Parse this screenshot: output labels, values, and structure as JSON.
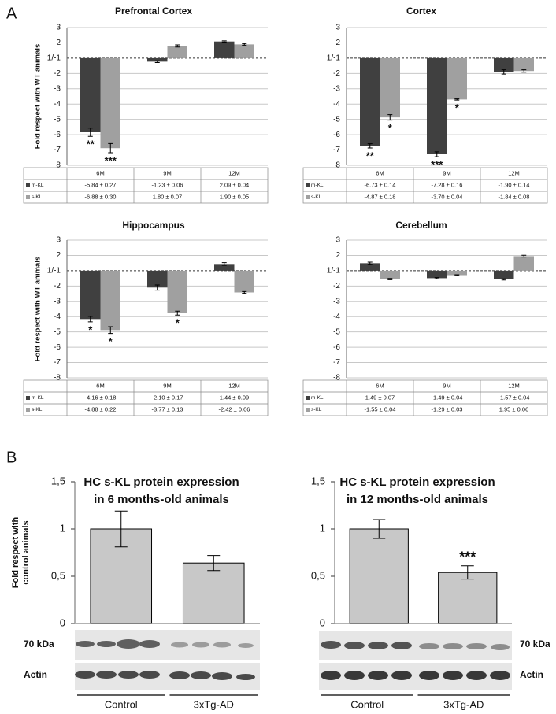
{
  "panel_labels": [
    "A",
    "B"
  ],
  "chart_data": [
    {
      "type": "bar",
      "scale": "fold",
      "title": "Prefrontal Cortex",
      "ylabel": "Fold respect with WT animals",
      "categories": [
        "6M",
        "9M",
        "12M"
      ],
      "ylim": [
        -8,
        3
      ],
      "grid": true,
      "yticks": [
        3,
        2,
        {
          "value": 1,
          "label": "1/-1"
        },
        -2,
        -3,
        -4,
        -5,
        -6,
        -7,
        -8
      ],
      "series": [
        {
          "name": "m-KL",
          "color": "#404040",
          "values": [
            -5.84,
            -1.23,
            2.09
          ],
          "errors": [
            0.27,
            0.06,
            0.04
          ],
          "value_labels": [
            "-5.84 ± 0.27",
            "-1.23 ± 0.06",
            "2.09 ± 0.04"
          ],
          "stars": [
            "**",
            null,
            null
          ]
        },
        {
          "name": "s-KL",
          "color": "#a0a0a0",
          "values": [
            -6.88,
            1.8,
            1.9
          ],
          "errors": [
            0.3,
            0.07,
            0.05
          ],
          "value_labels": [
            "-6.88 ± 0.30",
            "1.80 ± 0.07",
            "1.90 ± 0.05"
          ],
          "stars": [
            "***",
            null,
            null
          ]
        }
      ]
    },
    {
      "type": "bar",
      "scale": "fold",
      "title": "Cortex",
      "categories": [
        "6M",
        "9M",
        "12M"
      ],
      "ylim": [
        -8,
        3
      ],
      "grid": true,
      "yticks": [
        3,
        2,
        {
          "value": 1,
          "label": "1/-1"
        },
        -2,
        -3,
        -4,
        -5,
        -6,
        -7,
        -8
      ],
      "series": [
        {
          "name": "m-KL",
          "color": "#404040",
          "values": [
            -6.73,
            -7.28,
            -1.9
          ],
          "errors": [
            0.14,
            0.16,
            0.14
          ],
          "value_labels": [
            "-6.73 ± 0.14",
            "-7.28 ± 0.16",
            "-1.90 ± 0.14"
          ],
          "stars": [
            "**",
            "***",
            null
          ]
        },
        {
          "name": "s-KL",
          "color": "#a0a0a0",
          "values": [
            -4.87,
            -3.7,
            -1.84
          ],
          "errors": [
            0.18,
            0.04,
            0.08
          ],
          "value_labels": [
            "-4.87 ± 0.18",
            "-3.70 ± 0.04",
            "-1.84 ± 0.08"
          ],
          "stars": [
            "*",
            "*",
            null
          ]
        }
      ]
    },
    {
      "type": "bar",
      "scale": "fold",
      "title": "Hippocampus",
      "ylabel": "Fold respect with WT animals",
      "categories": [
        "6M",
        "9M",
        "12M"
      ],
      "ylim": [
        -8,
        3
      ],
      "grid": true,
      "yticks": [
        3,
        2,
        {
          "value": 1,
          "label": "1/-1"
        },
        -2,
        -3,
        -4,
        -5,
        -6,
        -7,
        -8
      ],
      "series": [
        {
          "name": "m-KL",
          "color": "#404040",
          "values": [
            -4.16,
            -2.1,
            1.44
          ],
          "errors": [
            0.18,
            0.17,
            0.09
          ],
          "value_labels": [
            "-4.16 ± 0.18",
            "-2.10 ± 0.17",
            "1.44 ± 0.09"
          ],
          "stars": [
            "*",
            null,
            null
          ]
        },
        {
          "name": "s-KL",
          "color": "#a0a0a0",
          "values": [
            -4.88,
            -3.77,
            -2.42
          ],
          "errors": [
            0.22,
            0.13,
            0.06
          ],
          "value_labels": [
            "-4.88 ± 0.22",
            "-3.77 ± 0.13",
            "-2.42 ± 0.06"
          ],
          "stars": [
            "*",
            "*",
            null
          ]
        }
      ]
    },
    {
      "type": "bar",
      "scale": "fold",
      "title": "Cerebellum",
      "categories": [
        "6M",
        "9M",
        "12M"
      ],
      "ylim": [
        -8,
        3
      ],
      "grid": true,
      "yticks": [
        3,
        2,
        {
          "value": 1,
          "label": "1/-1"
        },
        -2,
        -3,
        -4,
        -5,
        -6,
        -7,
        -8
      ],
      "series": [
        {
          "name": "m-KL",
          "color": "#404040",
          "values": [
            1.49,
            -1.49,
            -1.57
          ],
          "errors": [
            0.07,
            0.04,
            0.04
          ],
          "value_labels": [
            "1.49 ± 0.07",
            "-1.49 ± 0.04",
            "-1.57 ± 0.04"
          ]
        },
        {
          "name": "s-KL",
          "color": "#a0a0a0",
          "values": [
            -1.55,
            -1.29,
            1.95
          ],
          "errors": [
            0.04,
            0.03,
            0.06
          ],
          "value_labels": [
            "-1.55 ± 0.04",
            "-1.29 ± 0.03",
            "1.95 ± 0.06"
          ]
        }
      ]
    },
    {
      "type": "bar",
      "title": [
        "HC s-KL protein expression",
        "in 6 months-old animals"
      ],
      "ylabel": [
        "Fold respect with",
        "control  animals"
      ],
      "categories": [
        "Control",
        "3xTg-AD"
      ],
      "values": [
        1.0,
        0.64
      ],
      "errors": [
        0.19,
        0.08
      ],
      "color": "#c8c8c8",
      "ylim": [
        0,
        1.5
      ],
      "yticks": [
        0,
        {
          "value": 0.5,
          "label": "0,5"
        },
        1,
        {
          "value": 1.5,
          "label": "1,5"
        }
      ],
      "grid": false,
      "blot_labels": [
        "70 kDa",
        "Actin"
      ]
    },
    {
      "type": "bar",
      "title": [
        "HC s-KL protein expression",
        "in 12 months-old animals"
      ],
      "categories": [
        "Control",
        "3xTg-AD"
      ],
      "values": [
        1.0,
        0.54
      ],
      "errors": [
        0.1,
        0.07
      ],
      "color": "#c8c8c8",
      "stars": [
        null,
        "***"
      ],
      "ylim": [
        0,
        1.5
      ],
      "yticks": [
        0,
        {
          "value": 0.5,
          "label": "0,5"
        },
        1,
        {
          "value": 1.5,
          "label": "1,5"
        }
      ],
      "grid": false,
      "blot_labels": [
        "70 kDa",
        "Actin"
      ]
    }
  ]
}
